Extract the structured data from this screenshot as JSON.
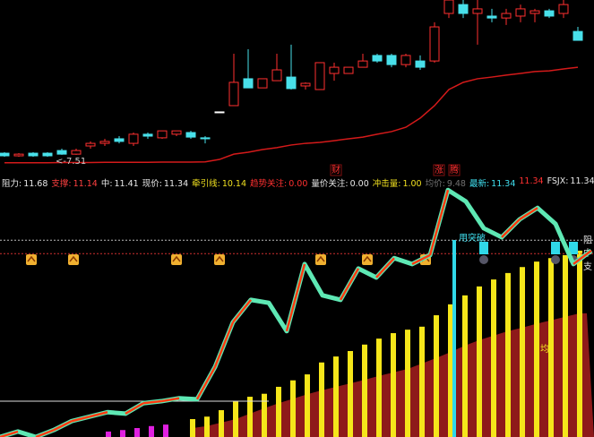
{
  "chart_data": [
    {
      "type": "candlestick",
      "open": [
        8.02,
        7.91,
        8.02,
        8.02,
        8.13,
        7.98,
        8.32,
        8.43,
        8.62,
        8.43,
        8.81,
        8.66,
        8.81,
        8.88,
        8.66,
        9.74,
        10.0,
        11.12,
        10.74,
        11.04,
        11.19,
        10.82,
        10.67,
        11.34,
        11.34,
        11.6,
        12.09,
        12.09,
        11.71,
        11.86,
        11.86,
        13.84,
        14.21,
        13.84,
        13.73,
        13.65,
        13.73,
        13.84,
        13.95,
        13.84,
        13.09
      ],
      "close": [
        7.91,
        7.98,
        7.91,
        7.91,
        7.98,
        8.13,
        8.43,
        8.51,
        8.51,
        8.81,
        8.73,
        8.95,
        8.95,
        8.69,
        8.62,
        9.74,
        10.97,
        10.74,
        11.12,
        11.49,
        10.71,
        10.93,
        11.79,
        11.6,
        11.6,
        11.86,
        11.86,
        11.71,
        12.09,
        11.6,
        13.28,
        14.4,
        13.84,
        14.03,
        13.65,
        13.84,
        14.03,
        13.95,
        13.73,
        14.21,
        12.72
      ],
      "high": [
        8.06,
        8.02,
        8.06,
        8.06,
        8.21,
        8.21,
        8.51,
        8.62,
        8.73,
        8.88,
        8.88,
        8.95,
        8.95,
        8.95,
        8.73,
        9.74,
        12.16,
        12.35,
        11.12,
        12.16,
        12.54,
        10.97,
        11.79,
        11.79,
        11.6,
        12.16,
        12.16,
        12.16,
        12.16,
        12.09,
        13.47,
        14.4,
        14.4,
        14.4,
        14.03,
        14.03,
        14.21,
        14.03,
        14.03,
        14.4,
        13.28
      ],
      "low": [
        7.87,
        7.87,
        7.87,
        7.87,
        7.95,
        7.95,
        8.21,
        8.32,
        8.43,
        8.32,
        8.62,
        8.62,
        8.73,
        8.62,
        8.43,
        9.74,
        10.0,
        10.74,
        10.74,
        11.04,
        10.67,
        10.67,
        10.67,
        11.04,
        11.34,
        11.6,
        11.79,
        11.6,
        11.6,
        11.49,
        11.79,
        13.65,
        13.65,
        12.54,
        13.47,
        13.36,
        13.47,
        13.47,
        13.65,
        13.65,
        12.72
      ],
      "up_color": "#ff3030",
      "down_color": "#48e0ea",
      "flat_color": "#ffffff",
      "ma": {
        "color": "#d41a1a",
        "values": [
          7.62,
          7.62,
          7.62,
          7.62,
          7.63,
          7.63,
          7.63,
          7.64,
          7.64,
          7.64,
          7.64,
          7.65,
          7.65,
          7.65,
          7.66,
          7.76,
          7.98,
          8.06,
          8.17,
          8.25,
          8.36,
          8.43,
          8.47,
          8.54,
          8.62,
          8.69,
          8.81,
          8.92,
          9.1,
          9.48,
          10.0,
          10.67,
          10.97,
          11.12,
          11.19,
          11.27,
          11.34,
          11.42,
          11.45,
          11.53,
          11.6
        ]
      },
      "low_label": "<-7.51",
      "ylim": [
        7.5,
        14.4
      ]
    },
    {
      "type": "indicator",
      "info_bar": [
        {
          "label": "阻力:",
          "value": 11.68,
          "color": "#e8e8e8",
          "marker": "阻"
        },
        {
          "label": "支撑:",
          "value": 11.14,
          "color": "#ff4040",
          "marker": "支"
        },
        {
          "label": "中:",
          "value": 11.41,
          "color": "#e8e8e8",
          "marker": "中"
        },
        {
          "label": "现价:",
          "value": 11.34,
          "color": "#e8e8e8"
        },
        {
          "label": "牵引线:",
          "value": 10.14,
          "color": "#f0e020"
        },
        {
          "label": "趋势关注:",
          "value": 0,
          "value_label": "0.00",
          "color": "#ff3030"
        },
        {
          "label": "量价关注:",
          "value": 0,
          "value_label": "0.00",
          "color": "#e8e8e8"
        },
        {
          "label": "冲击量:",
          "value": 1,
          "value_label": "1.00",
          "color": "#f0e020"
        },
        {
          "label": "均价:",
          "value": 9.48,
          "color": "#707070"
        },
        {
          "label": "最新:",
          "value": 11.34,
          "color": "#40e0f0"
        },
        {
          "label": "",
          "value": 11.34,
          "color": "#ff3030"
        },
        {
          "label": "FSJX:",
          "value": 11.34,
          "color": "#e8e8e8"
        }
      ],
      "line": {
        "color": "#5ee8b4",
        "up_color": "#ff3a10",
        "values": [
          7.72,
          7.83,
          7.72,
          7.86,
          8.04,
          8.13,
          8.22,
          8.19,
          8.4,
          8.44,
          8.5,
          8.48,
          9.13,
          10.03,
          10.48,
          10.42,
          9.85,
          11.2,
          10.57,
          10.48,
          11.11,
          10.93,
          11.32,
          11.2,
          11.38,
          12.69,
          12.46,
          11.92,
          11.74,
          12.1,
          12.33,
          12.01,
          11.2,
          11.47
        ]
      },
      "bars": {
        "color": "#f5e61a",
        "values": [
          8.08,
          8.13,
          8.26,
          8.44,
          8.53,
          8.59,
          8.73,
          8.86,
          8.98,
          9.22,
          9.34,
          9.45,
          9.58,
          9.7,
          9.81,
          9.88,
          9.94,
          10.17,
          10.39,
          10.57,
          10.75,
          10.89,
          11.02,
          11.14,
          11.25,
          11.32,
          11.38,
          11.47
        ]
      },
      "small_bars": {
        "color": "#e020e0",
        "values": [
          7.83,
          7.86,
          7.9,
          7.94,
          7.97
        ]
      },
      "area": {
        "name": "均",
        "color": "#8e1a1a",
        "values": [
          7.9,
          7.94,
          8.01,
          8.08,
          8.19,
          8.3,
          8.4,
          8.49,
          8.58,
          8.66,
          8.73,
          8.8,
          8.87,
          8.95,
          9.02,
          9.09,
          9.2,
          9.31,
          9.43,
          9.56,
          9.67,
          9.76,
          9.85,
          9.92,
          10.0,
          10.07,
          10.14,
          10.21
        ]
      },
      "annotations": [
        "财",
        "涨",
        "腾",
        "用突破"
      ],
      "ylim": [
        7.72,
        12.82
      ]
    }
  ]
}
